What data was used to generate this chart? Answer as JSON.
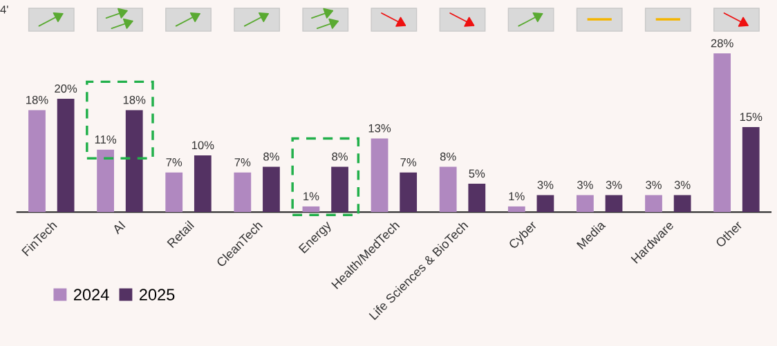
{
  "chart_data": {
    "type": "bar",
    "categories": [
      "FinTech",
      "AI",
      "Retail",
      "CleanTech",
      "Energy",
      "Health/MedTech",
      "Life Sciences & BioTech",
      "Cyber",
      "Media",
      "Hardware",
      "Other"
    ],
    "series": [
      {
        "name": "2024",
        "color": "#b088c0",
        "values": [
          18,
          11,
          7,
          7,
          1,
          13,
          8,
          1,
          3,
          3,
          28
        ],
        "value_labels": [
          "18%",
          "11%",
          "7%",
          "7%",
          "1%",
          "13%",
          "8%",
          "1%",
          "3%",
          "3%",
          "28%"
        ]
      },
      {
        "name": "2025",
        "color": "#543263",
        "values": [
          20,
          18,
          10,
          8,
          8,
          7,
          5,
          3,
          3,
          3,
          15
        ],
        "value_labels": [
          "20%",
          "18%",
          "10%",
          "8%",
          "8%",
          "7%",
          "5%",
          "3%",
          "3%",
          "3%",
          "15%"
        ]
      }
    ],
    "annotations": [
      "4'"
    ],
    "legend": "bottom left"
  }
}
